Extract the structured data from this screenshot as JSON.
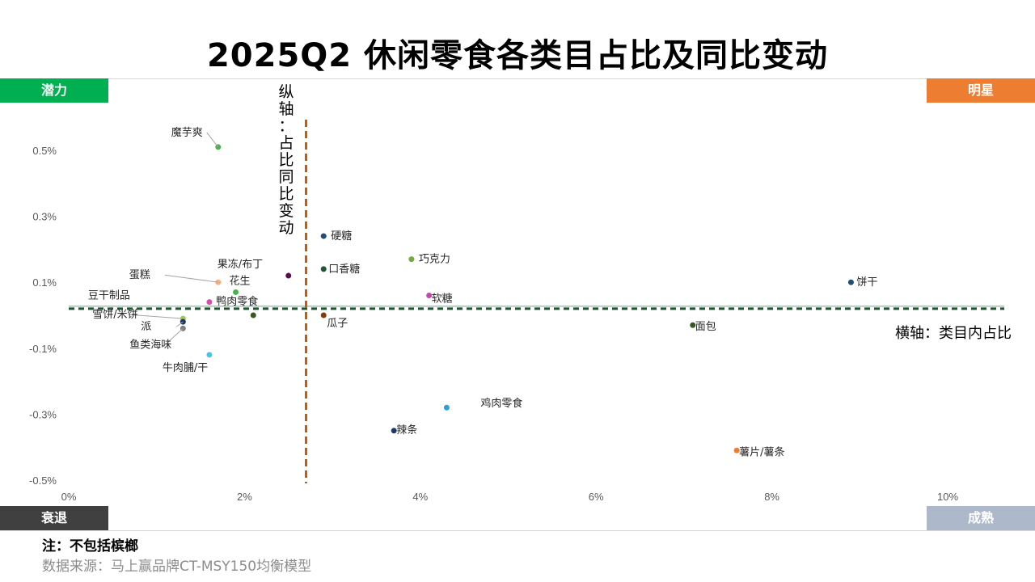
{
  "title": "2025Q2 休闲零食各类目占比及同比变动",
  "quadrants": {
    "top_left": "潜力",
    "top_right": "明星",
    "bottom_left": "衰退",
    "bottom_right": "成熟"
  },
  "colors": {
    "top_left": "#00b050",
    "top_right": "#ed7d31",
    "bottom_left": "#404040",
    "bottom_right": "#adb9ca",
    "vertical_divider": "#c55a11",
    "horizontal_divider": "#1e5631"
  },
  "footer": {
    "note": "注：不包括槟榔",
    "source": "数据来源：马上赢品牌CT-MSY150均衡模型"
  },
  "chart_data": {
    "type": "scatter",
    "xlabel": "横轴：类目内占比",
    "ylabel": "纵轴：占比同比变动",
    "xlim": [
      0,
      10
    ],
    "ylim": [
      -0.5,
      0.6
    ],
    "x_ticks": [
      "0%",
      "2%",
      "4%",
      "6%",
      "8%",
      "10%"
    ],
    "y_ticks": [
      "0.5%",
      "0.3%",
      "0.1%",
      "-0.1%",
      "-0.3%",
      "-0.5%"
    ],
    "x_divider": 2.7,
    "y_divider": 0.02,
    "points": [
      {
        "label": "魔芋爽",
        "x": 1.7,
        "y": 0.51,
        "color": "#4caf50"
      },
      {
        "label": "硬糖",
        "x": 2.9,
        "y": 0.24,
        "color": "#1f4e79"
      },
      {
        "label": "巧克力",
        "x": 3.9,
        "y": 0.17,
        "color": "#70ad47"
      },
      {
        "label": "口香糖",
        "x": 2.9,
        "y": 0.14,
        "color": "#1e5631"
      },
      {
        "label": "果冻/布丁",
        "x": 2.5,
        "y": 0.12,
        "color": "#5b0e4e"
      },
      {
        "label": "蛋糕",
        "x": 1.7,
        "y": 0.1,
        "color": "#f4b183"
      },
      {
        "label": "饼干",
        "x": 8.9,
        "y": 0.1,
        "color": "#1f4e79"
      },
      {
        "label": "花生",
        "x": 1.9,
        "y": 0.07,
        "color": "#4caf50"
      },
      {
        "label": "软糖",
        "x": 4.1,
        "y": 0.06,
        "color": "#c048b0"
      },
      {
        "label": "豆干制品",
        "x": 1.6,
        "y": 0.04,
        "color": "#d64fa8"
      },
      {
        "label": "鸭肉零食",
        "x": 2.1,
        "y": 0.0,
        "color": "#385723"
      },
      {
        "label": "瓜子",
        "x": 2.9,
        "y": 0.0,
        "color": "#843c0c"
      },
      {
        "label": "雪饼/米饼",
        "x": 1.3,
        "y": -0.01,
        "color": "#92d050"
      },
      {
        "label": "派",
        "x": 1.3,
        "y": -0.02,
        "color": "#203864"
      },
      {
        "label": "面包",
        "x": 7.1,
        "y": -0.03,
        "color": "#385723"
      },
      {
        "label": "鱼类海味",
        "x": 1.3,
        "y": -0.04,
        "color": "#7f7f7f"
      },
      {
        "label": "牛肉脯/干",
        "x": 1.6,
        "y": -0.12,
        "color": "#4fc1e9"
      },
      {
        "label": "鸡肉零食",
        "x": 4.3,
        "y": -0.28,
        "color": "#2e9fd9"
      },
      {
        "label": "辣条",
        "x": 3.7,
        "y": -0.35,
        "color": "#203864"
      },
      {
        "label": "薯片/薯条",
        "x": 7.6,
        "y": -0.41,
        "color": "#ed7d31"
      }
    ]
  }
}
